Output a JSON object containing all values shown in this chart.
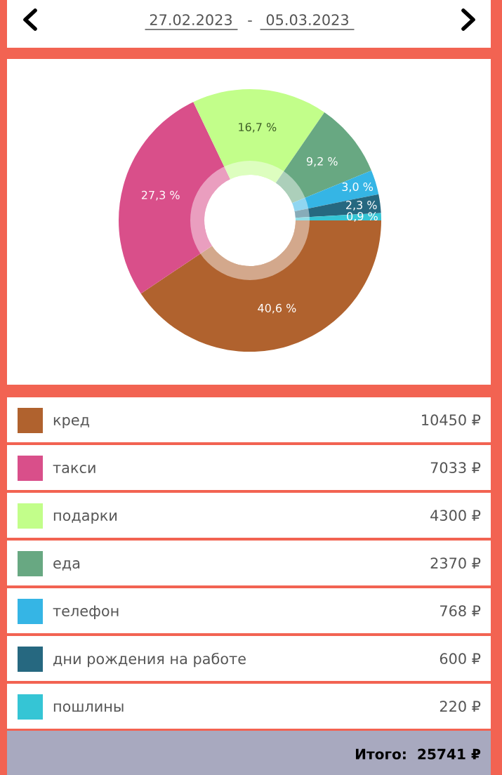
{
  "chart_data": {
    "type": "donut",
    "categories": [
      "кред",
      "такси",
      "подарки",
      "еда",
      "телефон",
      "дни рождения на работе",
      "пошлины"
    ],
    "values": [
      40.6,
      27.3,
      16.7,
      9.2,
      3.0,
      2.3,
      0.9
    ],
    "colors": [
      "#b0622e",
      "#d94f8a",
      "#c2fe8a",
      "#68a882",
      "#35b5e5",
      "#266880",
      "#35c5d5"
    ],
    "value_labels": [
      "40,6 %",
      "27,3 %",
      "16,7 %",
      "9,2 %",
      "3,0 %",
      "2,3 %",
      "0,9 %"
    ],
    "legend": "bottom",
    "annotations": [
      "27.02.2023",
      "-",
      "05.03.2023",
      "Итого:  25741 ₽",
      "10450 ₽",
      "7033 ₽",
      "4300 ₽",
      "2370 ₽",
      "768 ₽",
      "600 ₽",
      "220 ₽"
    ]
  }
}
